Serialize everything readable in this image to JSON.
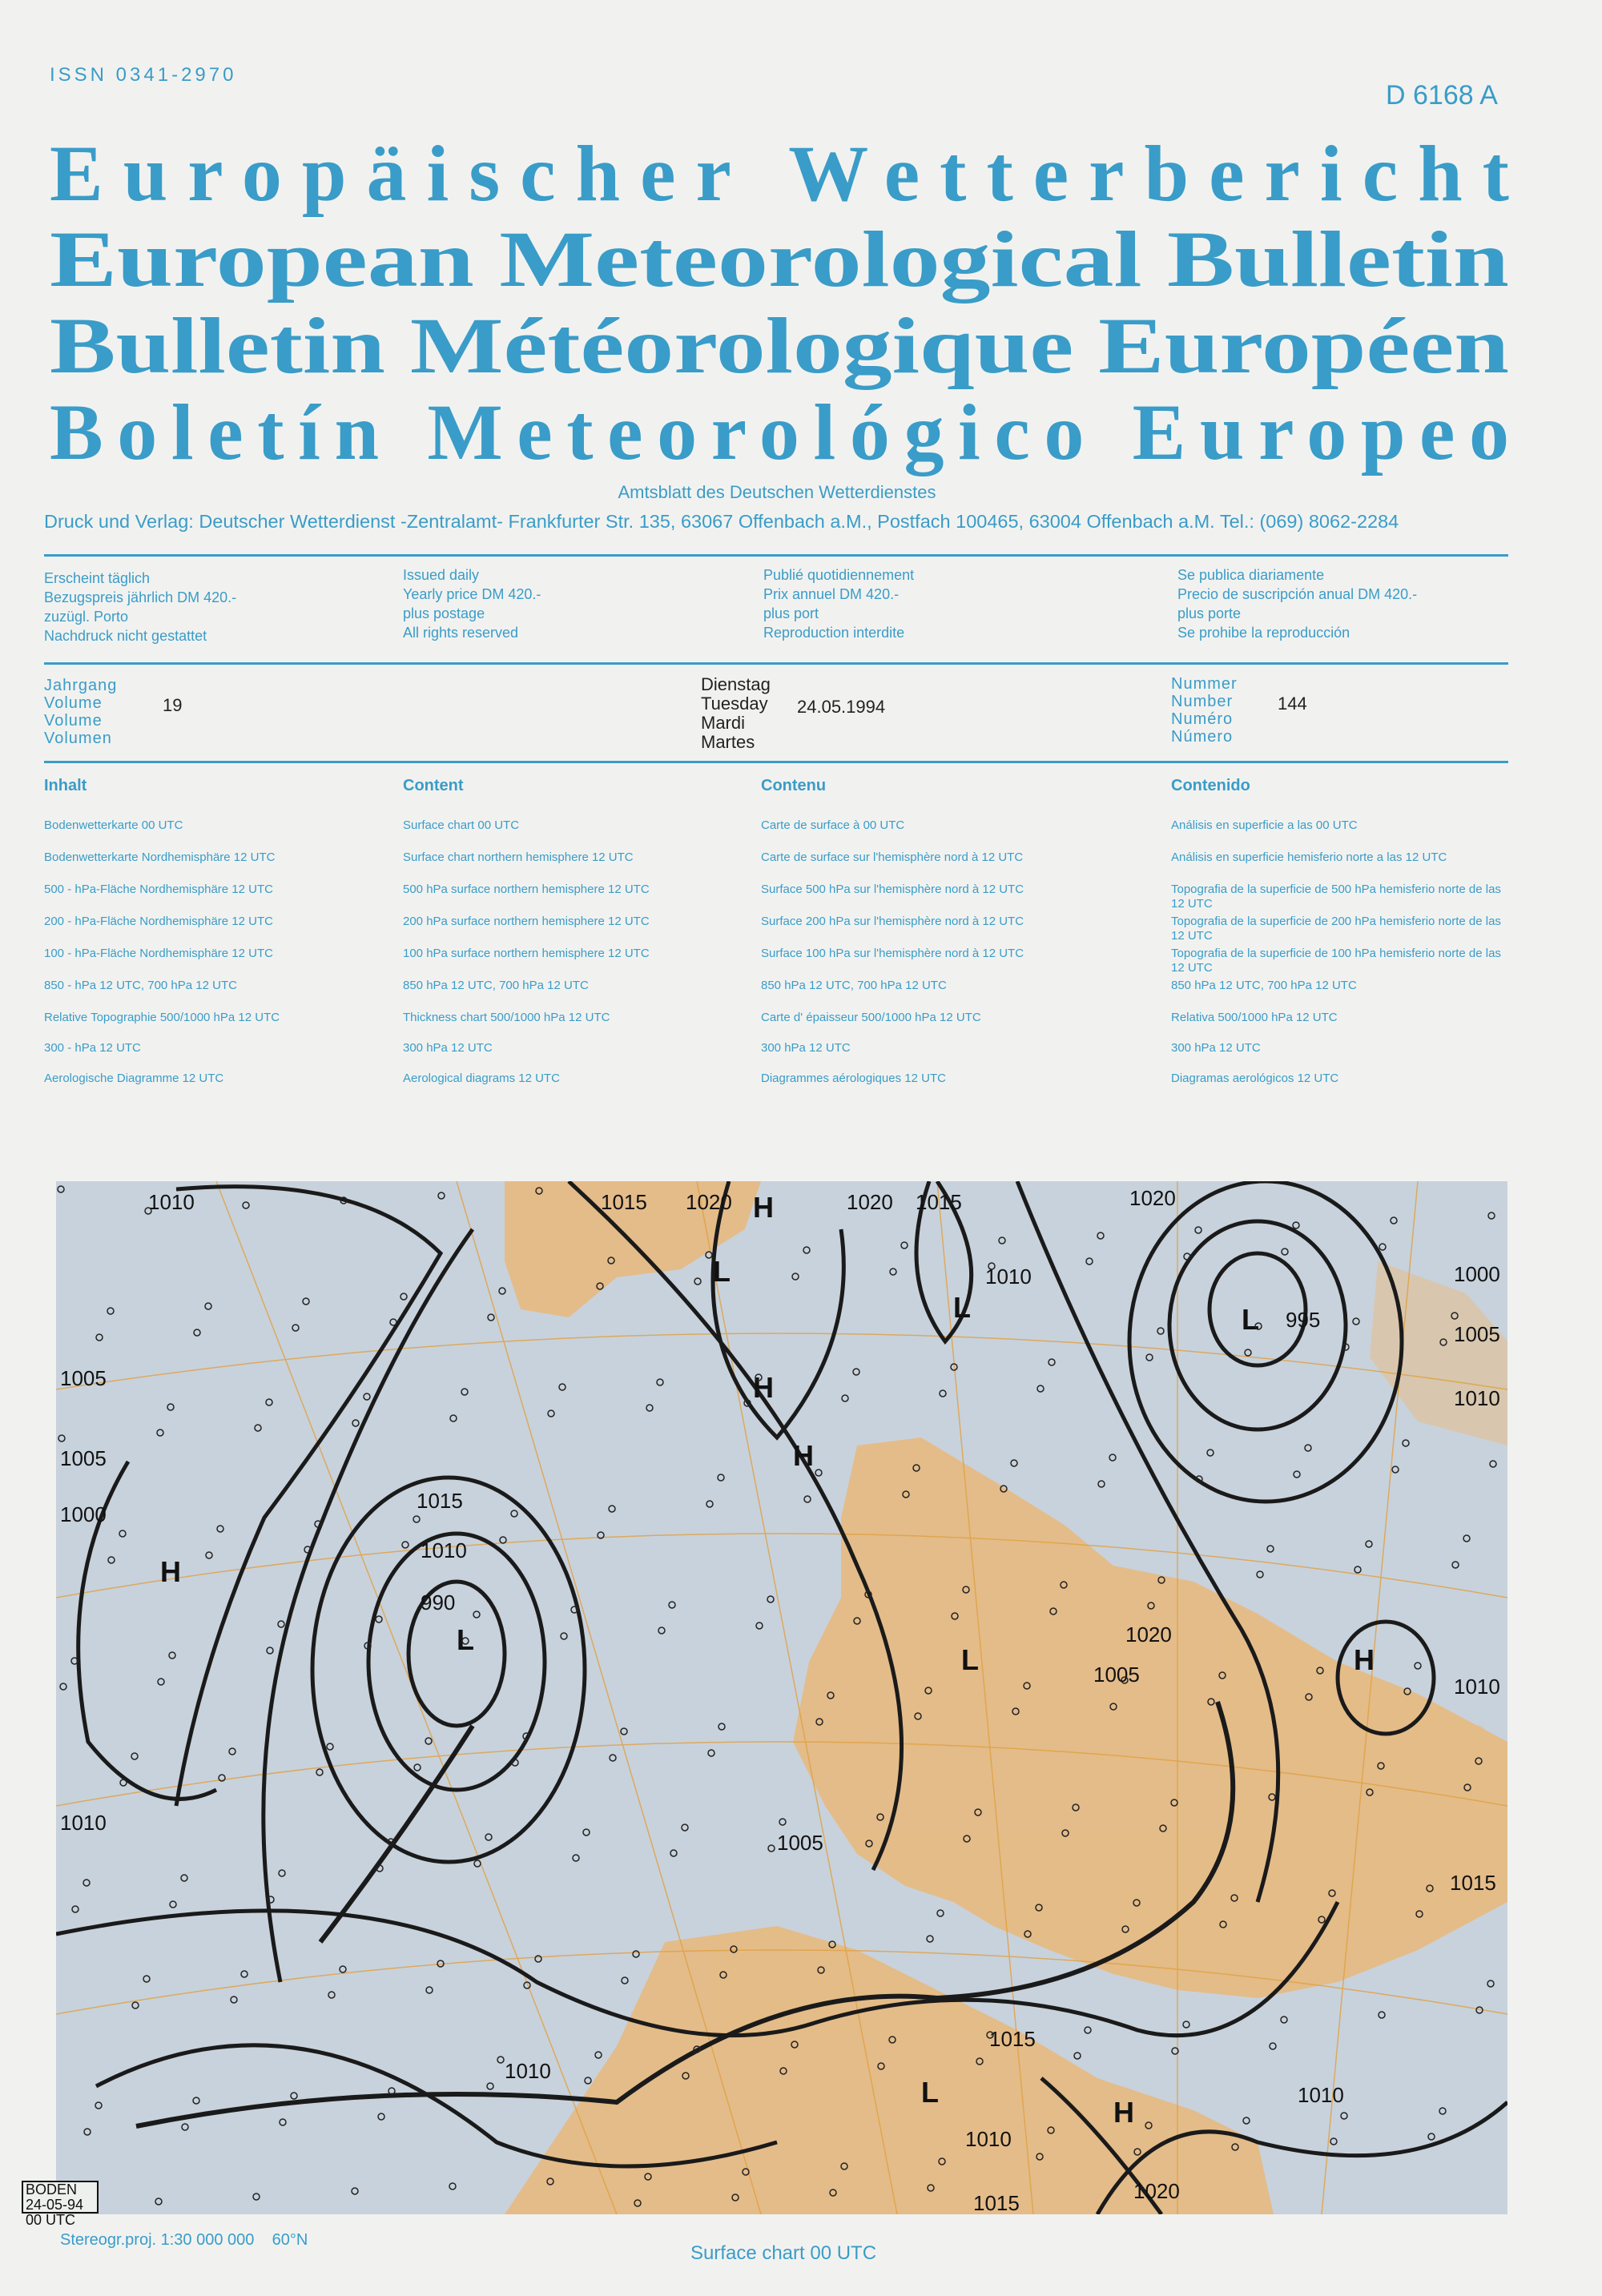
{
  "header": {
    "issn": "ISSN 0341-2970",
    "code": "D 6168 A",
    "titles": [
      "Europäischer Wetterbericht",
      "European Meteorological Bulletin",
      "Bulletin Météorologique Européen",
      "Boletín Meteorológico Europeo"
    ],
    "subtitle": "Amtsblatt des Deutschen Wetterdienstes",
    "publisher": "Druck und Verlag: Deutscher Wetterdienst -Zentralamt- Frankfurter Str. 135, 63067 Offenbach a.M., Postfach 100465, 63004 Offenbach a.M. Tel.: (069) 8062-2284"
  },
  "info": [
    [
      "Erscheint täglich",
      "Bezugspreis jährlich DM 420.-",
      "zuzügl. Porto",
      "Nachdruck nicht gestattet"
    ],
    [
      "Issued daily",
      "Yearly price DM 420.-",
      "plus postage",
      "All rights reserved"
    ],
    [
      "Publié quotidiennement",
      "Prix annuel DM 420.-",
      "plus port",
      "Reproduction interdite"
    ],
    [
      "Se publica diariamente",
      "Precio de suscripción anual DM 420.-",
      "plus porte",
      "Se prohibe la reproducción"
    ]
  ],
  "volume": {
    "labels": [
      "Jahrgang",
      "Volume",
      "Volume",
      "Volumen"
    ],
    "value": "19"
  },
  "date": {
    "days": [
      "Dienstag",
      "Tuesday",
      "Mardi",
      "Martes"
    ],
    "value": "24.05.1994"
  },
  "number": {
    "labels": [
      "Nummer",
      "Number",
      "Numéro",
      "Número"
    ],
    "value": "144"
  },
  "contents": [
    {
      "heading": "Inhalt",
      "items": [
        "Bodenwetterkarte 00 UTC",
        "Bodenwetterkarte Nordhemisphäre 12 UTC",
        "500 - hPa-Fläche Nordhemisphäre 12 UTC",
        "200 - hPa-Fläche Nordhemisphäre 12 UTC",
        "100 - hPa-Fläche Nordhemisphäre 12 UTC",
        "850 - hPa 12 UTC, 700 hPa 12 UTC",
        "Relative Topographie 500/1000 hPa 12 UTC",
        "300 - hPa 12 UTC",
        "Aerologische Diagramme 12 UTC"
      ]
    },
    {
      "heading": "Content",
      "items": [
        "Surface chart 00 UTC",
        "Surface chart northern hemisphere 12 UTC",
        "500 hPa surface northern hemisphere 12 UTC",
        "200 hPa surface northern hemisphere 12 UTC",
        "100 hPa surface northern hemisphere 12 UTC",
        "850 hPa 12 UTC, 700 hPa 12 UTC",
        "Thickness chart 500/1000 hPa 12 UTC",
        "300 hPa 12 UTC",
        "Aerological diagrams 12 UTC"
      ]
    },
    {
      "heading": "Contenu",
      "items": [
        "Carte de surface à 00 UTC",
        "Carte de surface sur l'hemisphère nord à 12 UTC",
        "Surface 500 hPa sur l'hemisphère nord à 12 UTC",
        "Surface 200 hPa sur l'hemisphère nord à 12 UTC",
        "Surface 100 hPa sur l'hemisphère nord à 12 UTC",
        "850 hPa 12 UTC, 700 hPa 12 UTC",
        "Carte d' épaisseur 500/1000 hPa 12 UTC",
        "300 hPa 12 UTC",
        "Diagrammes aérologiques 12 UTC"
      ]
    },
    {
      "heading": "Contenido",
      "items": [
        "Análisis en superficie a las 00 UTC",
        "Análisis en superficie hemisferio norte a las 12 UTC",
        "Topografia de la superficie de 500 hPa hemisferio norte de las 12 UTC",
        "Topografia de la superficie de 200 hPa hemisferio norte de las 12 UTC",
        "Topografia de la superficie de 100 hPa hemisferio norte de las 12 UTC",
        "850 hPa 12 UTC, 700 hPa 12 UTC",
        "Relativa 500/1000 hPa 12 UTC",
        "300 hPa 12 UTC",
        "Diagramas aerológicos 12 UTC"
      ]
    }
  ],
  "map": {
    "stamp": [
      "BODEN",
      "24-05-94 00 UTC"
    ],
    "isobar_labels": [
      "1010",
      "1005",
      "1015",
      "1020",
      "1020",
      "1015",
      "1010",
      "1020",
      "995",
      "1000",
      "1005",
      "1010",
      "1005",
      "1000",
      "990",
      "1010",
      "1015",
      "1020",
      "1005",
      "1010",
      "1005",
      "1010",
      "1015",
      "1010",
      "1015",
      "1010",
      "1015",
      "1010",
      "1020"
    ],
    "pressure_centres": [
      "H",
      "H",
      "H",
      "H",
      "L",
      "L",
      "L",
      "L",
      "L",
      "L",
      "H",
      "H"
    ],
    "colors": {
      "sea": "#c8d2dc",
      "land": "#e9b97a",
      "grid": "#e0a040",
      "isobar": "#1a1a1a"
    }
  },
  "footer": {
    "projection": "Stereogr.proj. 1:30 000 000    60°N",
    "caption": "Surface chart 00 UTC"
  },
  "colors": {
    "accent": "#3a9cc8",
    "paper": "#f1f2f0"
  }
}
